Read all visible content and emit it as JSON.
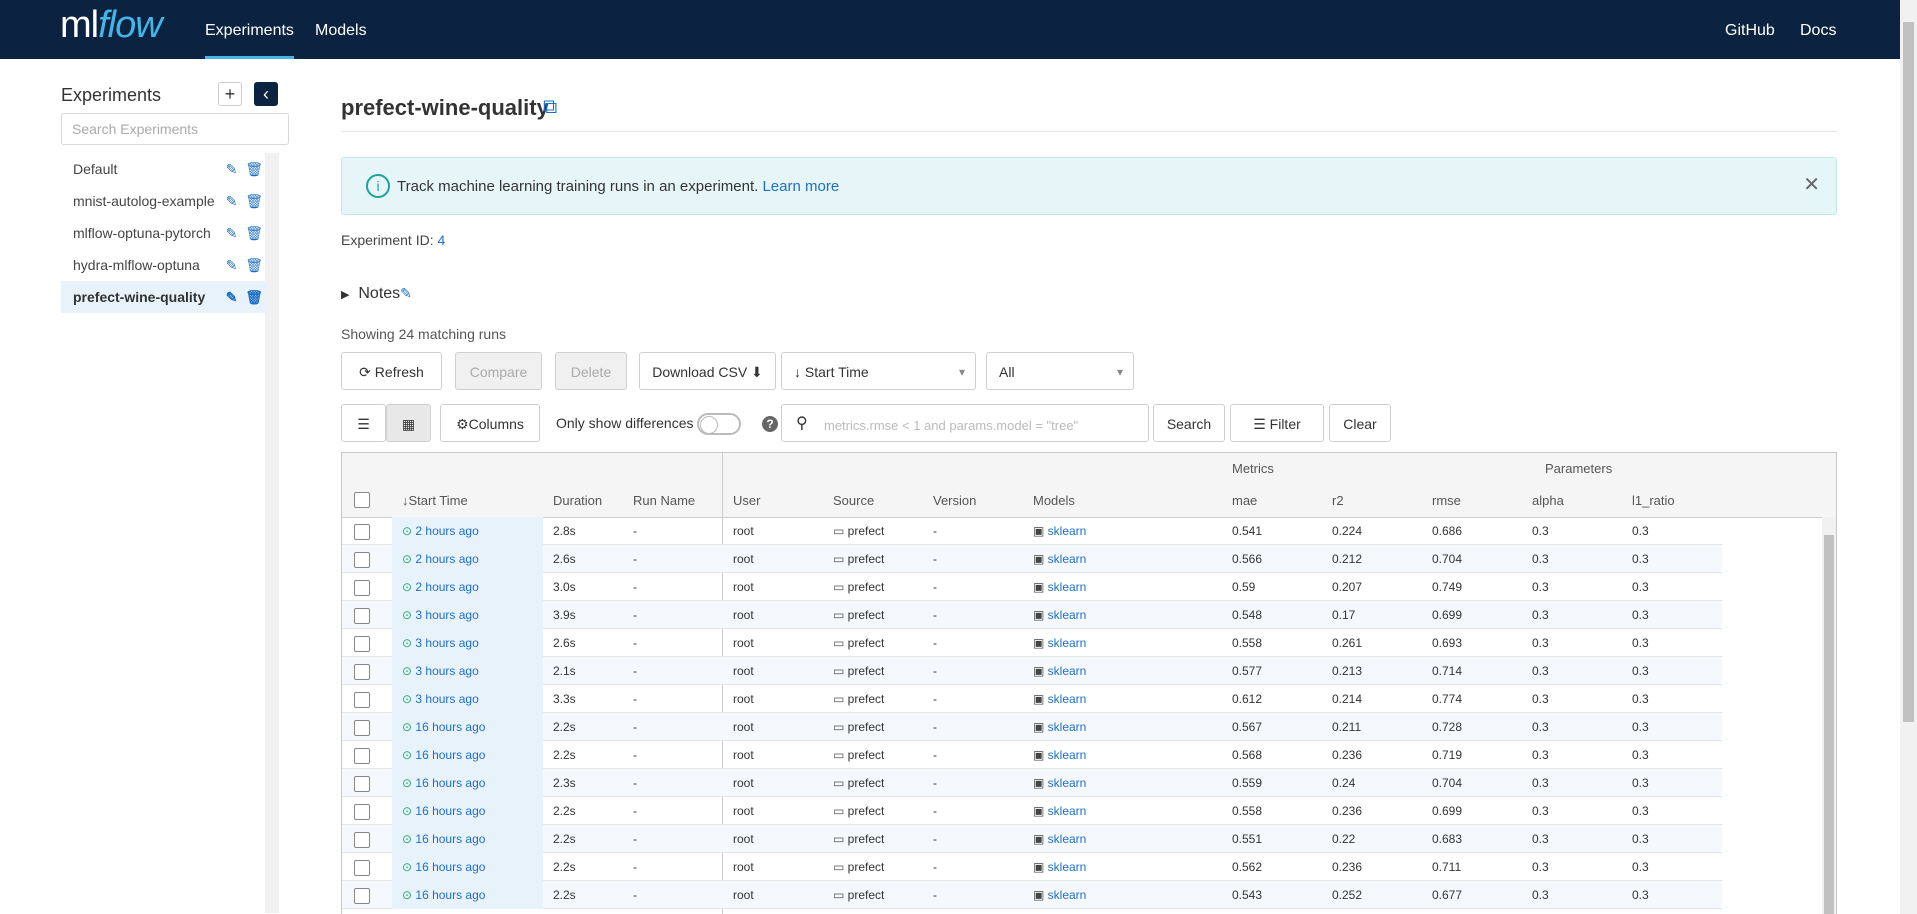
{
  "app": {
    "logo_ml": "ml",
    "logo_flow": "flow",
    "nav_left": [
      "Experiments",
      "Models"
    ],
    "nav_right": [
      "GitHub",
      "Docs"
    ],
    "accent_color": "#43b5e8",
    "topbar_color": "#0b2340"
  },
  "sidebar": {
    "title": "Experiments",
    "add_icon": "plus-icon",
    "collapse_icon": "chevron-left-icon",
    "search_placeholder": "Search Experiments",
    "experiments": [
      {
        "name": "Default",
        "active": false
      },
      {
        "name": "mnist-autolog-example",
        "active": false
      },
      {
        "name": "mlflow-optuna-pytorch",
        "active": false
      },
      {
        "name": "hydra-mlflow-optuna",
        "active": false
      },
      {
        "name": "prefect-wine-quality",
        "active": true
      }
    ]
  },
  "main": {
    "title": "prefect-wine-quality",
    "info_text": "Track machine learning training runs in an experiment.",
    "info_link": "Learn more",
    "experiment_id_label": "Experiment ID:",
    "experiment_id": "4",
    "notes_label": "Notes",
    "showing": "Showing 24 matching runs",
    "buttons": {
      "refresh": "Refresh",
      "compare": "Compare",
      "delete": "Delete",
      "download": "Download CSV",
      "columns": "Columns",
      "only_diff": "Only show differences",
      "search": "Search",
      "filter": "Filter",
      "clear": "Clear"
    },
    "sort_select": "Start Time",
    "state_select": "All",
    "search_placeholder": "metrics.rmse < 1 and params.model = \"tree\""
  },
  "table": {
    "group_headers": {
      "metrics": "Metrics",
      "parameters": "Parameters"
    },
    "columns": [
      "Start Time",
      "Duration",
      "Run Name",
      "User",
      "Source",
      "Version",
      "Models",
      "mae",
      "r2",
      "rmse",
      "alpha",
      "l1_ratio"
    ],
    "rows": [
      {
        "time": "2 hours ago",
        "duration": "2.8s",
        "run_name": "-",
        "user": "root",
        "source": "prefect",
        "version": "-",
        "model": "sklearn",
        "mae": "0.541",
        "r2": "0.224",
        "rmse": "0.686",
        "alpha": "0.3",
        "l1_ratio": "0.3"
      },
      {
        "time": "2 hours ago",
        "duration": "2.6s",
        "run_name": "-",
        "user": "root",
        "source": "prefect",
        "version": "-",
        "model": "sklearn",
        "mae": "0.566",
        "r2": "0.212",
        "rmse": "0.704",
        "alpha": "0.3",
        "l1_ratio": "0.3"
      },
      {
        "time": "2 hours ago",
        "duration": "3.0s",
        "run_name": "-",
        "user": "root",
        "source": "prefect",
        "version": "-",
        "model": "sklearn",
        "mae": "0.59",
        "r2": "0.207",
        "rmse": "0.749",
        "alpha": "0.3",
        "l1_ratio": "0.3"
      },
      {
        "time": "3 hours ago",
        "duration": "3.9s",
        "run_name": "-",
        "user": "root",
        "source": "prefect",
        "version": "-",
        "model": "sklearn",
        "mae": "0.548",
        "r2": "0.17",
        "rmse": "0.699",
        "alpha": "0.3",
        "l1_ratio": "0.3"
      },
      {
        "time": "3 hours ago",
        "duration": "2.6s",
        "run_name": "-",
        "user": "root",
        "source": "prefect",
        "version": "-",
        "model": "sklearn",
        "mae": "0.558",
        "r2": "0.261",
        "rmse": "0.693",
        "alpha": "0.3",
        "l1_ratio": "0.3"
      },
      {
        "time": "3 hours ago",
        "duration": "2.1s",
        "run_name": "-",
        "user": "root",
        "source": "prefect",
        "version": "-",
        "model": "sklearn",
        "mae": "0.577",
        "r2": "0.213",
        "rmse": "0.714",
        "alpha": "0.3",
        "l1_ratio": "0.3"
      },
      {
        "time": "3 hours ago",
        "duration": "3.3s",
        "run_name": "-",
        "user": "root",
        "source": "prefect",
        "version": "-",
        "model": "sklearn",
        "mae": "0.612",
        "r2": "0.214",
        "rmse": "0.774",
        "alpha": "0.3",
        "l1_ratio": "0.3"
      },
      {
        "time": "16 hours ago",
        "duration": "2.2s",
        "run_name": "-",
        "user": "root",
        "source": "prefect",
        "version": "-",
        "model": "sklearn",
        "mae": "0.567",
        "r2": "0.211",
        "rmse": "0.728",
        "alpha": "0.3",
        "l1_ratio": "0.3"
      },
      {
        "time": "16 hours ago",
        "duration": "2.2s",
        "run_name": "-",
        "user": "root",
        "source": "prefect",
        "version": "-",
        "model": "sklearn",
        "mae": "0.568",
        "r2": "0.236",
        "rmse": "0.719",
        "alpha": "0.3",
        "l1_ratio": "0.3"
      },
      {
        "time": "16 hours ago",
        "duration": "2.3s",
        "run_name": "-",
        "user": "root",
        "source": "prefect",
        "version": "-",
        "model": "sklearn",
        "mae": "0.559",
        "r2": "0.24",
        "rmse": "0.704",
        "alpha": "0.3",
        "l1_ratio": "0.3"
      },
      {
        "time": "16 hours ago",
        "duration": "2.2s",
        "run_name": "-",
        "user": "root",
        "source": "prefect",
        "version": "-",
        "model": "sklearn",
        "mae": "0.558",
        "r2": "0.236",
        "rmse": "0.699",
        "alpha": "0.3",
        "l1_ratio": "0.3"
      },
      {
        "time": "16 hours ago",
        "duration": "2.2s",
        "run_name": "-",
        "user": "root",
        "source": "prefect",
        "version": "-",
        "model": "sklearn",
        "mae": "0.551",
        "r2": "0.22",
        "rmse": "0.683",
        "alpha": "0.3",
        "l1_ratio": "0.3"
      },
      {
        "time": "16 hours ago",
        "duration": "2.2s",
        "run_name": "-",
        "user": "root",
        "source": "prefect",
        "version": "-",
        "model": "sklearn",
        "mae": "0.562",
        "r2": "0.236",
        "rmse": "0.711",
        "alpha": "0.3",
        "l1_ratio": "0.3"
      },
      {
        "time": "16 hours ago",
        "duration": "2.2s",
        "run_name": "-",
        "user": "root",
        "source": "prefect",
        "version": "-",
        "model": "sklearn",
        "mae": "0.543",
        "r2": "0.252",
        "rmse": "0.677",
        "alpha": "0.3",
        "l1_ratio": "0.3"
      }
    ]
  }
}
